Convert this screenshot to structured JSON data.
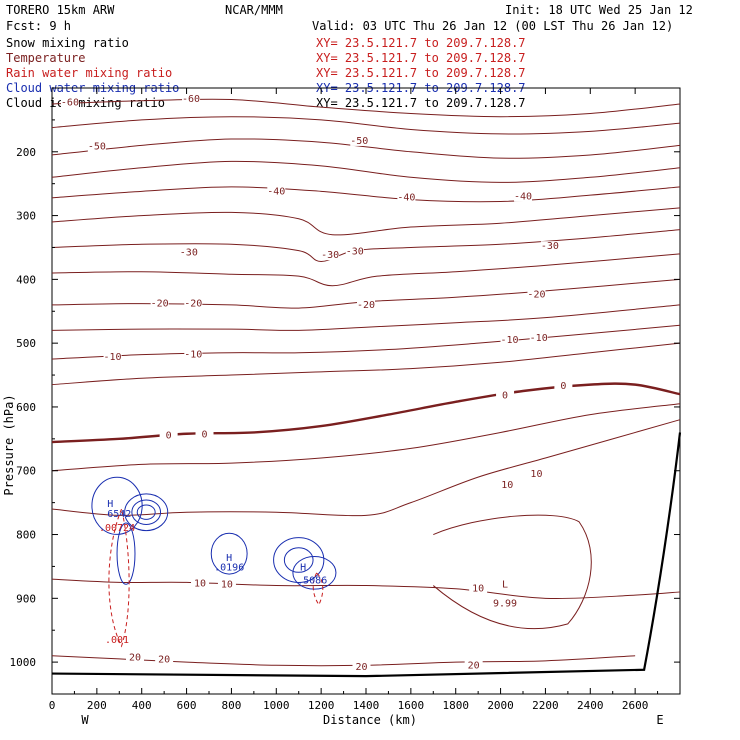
{
  "header": {
    "model": "TORERO  15km ARW",
    "center": "NCAR/MMM",
    "init": "Init: 18 UTC Wed 25 Jan 12",
    "fcst": "Fcst:    9 h",
    "valid": "Valid: 03 UTC Thu 26 Jan 12 (00 LST Thu 26 Jan 12)"
  },
  "fields": [
    {
      "name": "Snow mixing ratio",
      "xy": "XY=  23.5.121.7 to 209.7.128.7",
      "color": "#000000",
      "xycolor": "#c81e1e"
    },
    {
      "name": "Temperature",
      "xy": "XY=  23.5.121.7 to 209.7.128.7",
      "color": "#7a1f1f",
      "xycolor": "#c81e1e"
    },
    {
      "name": "Rain water mixing ratio",
      "xy": "XY=  23.5.121.7 to 209.7.128.7",
      "color": "#c81e1e",
      "xycolor": "#c81e1e"
    },
    {
      "name": "Cloud water mixing ratio",
      "xy": "XY=  23.5.121.7 to 209.7.128.7",
      "color": "#1a2fb0",
      "xycolor": "#1a2fb0"
    },
    {
      "name": "Cloud ice mixing ratio",
      "xy": "XY=  23.5.121.7 to 209.7.128.7",
      "color": "#000000",
      "xycolor": "#000000"
    }
  ],
  "chart_data": {
    "type": "contour cross-section",
    "xlabel": "Distance (km)",
    "ylabel": "Pressure (hPa)",
    "xlim": [
      0,
      2800
    ],
    "ylim": [
      1050,
      100
    ],
    "xticks": [
      "0",
      "200",
      "400",
      "600",
      "800",
      "1000",
      "1200",
      "1400",
      "1600",
      "1800",
      "2000",
      "2200",
      "2400",
      "2600"
    ],
    "yticks": [
      "200",
      "300",
      "400",
      "500",
      "600",
      "700",
      "800",
      "900",
      "1000"
    ],
    "x_endpoints": {
      "left": "W",
      "right": "E"
    },
    "temperature_contours": [
      {
        "level": -60,
        "line": [
          [
            0,
            125
          ],
          [
            400,
            120
          ],
          [
            800,
            118
          ],
          [
            1200,
            130
          ],
          [
            1600,
            140
          ],
          [
            2000,
            145
          ],
          [
            2400,
            140
          ],
          [
            2800,
            125
          ]
        ]
      },
      {
        "level": -55,
        "line": [
          [
            0,
            162
          ],
          [
            400,
            150
          ],
          [
            800,
            145
          ],
          [
            1200,
            150
          ],
          [
            1600,
            165
          ],
          [
            2000,
            172
          ],
          [
            2400,
            168
          ],
          [
            2800,
            155
          ]
        ]
      },
      {
        "level": -50,
        "line": [
          [
            0,
            205
          ],
          [
            400,
            190
          ],
          [
            800,
            180
          ],
          [
            1200,
            185
          ],
          [
            1600,
            200
          ],
          [
            2000,
            210
          ],
          [
            2400,
            205
          ],
          [
            2800,
            190
          ]
        ]
      },
      {
        "level": -45,
        "line": [
          [
            0,
            240
          ],
          [
            400,
            225
          ],
          [
            800,
            215
          ],
          [
            1200,
            222
          ],
          [
            1600,
            240
          ],
          [
            2000,
            248
          ],
          [
            2400,
            240
          ],
          [
            2800,
            225
          ]
        ]
      },
      {
        "level": -40,
        "line": [
          [
            0,
            272
          ],
          [
            400,
            262
          ],
          [
            800,
            255
          ],
          [
            1200,
            262
          ],
          [
            1600,
            275
          ],
          [
            2000,
            278
          ],
          [
            2400,
            268
          ],
          [
            2800,
            255
          ]
        ]
      },
      {
        "level": -35,
        "line": [
          [
            0,
            310
          ],
          [
            400,
            300
          ],
          [
            800,
            295
          ],
          [
            1100,
            305
          ],
          [
            1250,
            330
          ],
          [
            1600,
            318
          ],
          [
            2000,
            312
          ],
          [
            2400,
            300
          ],
          [
            2800,
            288
          ]
        ]
      },
      {
        "level": -30,
        "line": [
          [
            0,
            350
          ],
          [
            400,
            345
          ],
          [
            800,
            345
          ],
          [
            1100,
            355
          ],
          [
            1200,
            372
          ],
          [
            1350,
            355
          ],
          [
            1600,
            350
          ],
          [
            2000,
            345
          ],
          [
            2400,
            335
          ],
          [
            2800,
            322
          ]
        ]
      },
      {
        "level": -25,
        "line": [
          [
            0,
            390
          ],
          [
            400,
            388
          ],
          [
            800,
            392
          ],
          [
            1100,
            395
          ],
          [
            1250,
            410
          ],
          [
            1450,
            395
          ],
          [
            1800,
            388
          ],
          [
            2200,
            378
          ],
          [
            2800,
            360
          ]
        ]
      },
      {
        "level": -20,
        "line": [
          [
            0,
            440
          ],
          [
            400,
            438
          ],
          [
            800,
            440
          ],
          [
            1100,
            445
          ],
          [
            1400,
            435
          ],
          [
            1800,
            428
          ],
          [
            2200,
            418
          ],
          [
            2800,
            400
          ]
        ]
      },
      {
        "level": -15,
        "line": [
          [
            0,
            480
          ],
          [
            400,
            478
          ],
          [
            800,
            478
          ],
          [
            1100,
            480
          ],
          [
            1400,
            475
          ],
          [
            1800,
            468
          ],
          [
            2200,
            460
          ],
          [
            2800,
            440
          ]
        ]
      },
      {
        "level": -10,
        "line": [
          [
            0,
            525
          ],
          [
            400,
            518
          ],
          [
            800,
            515
          ],
          [
            1100,
            515
          ],
          [
            1500,
            510
          ],
          [
            1900,
            500
          ],
          [
            2300,
            488
          ],
          [
            2800,
            472
          ]
        ]
      },
      {
        "level": -5,
        "line": [
          [
            0,
            565
          ],
          [
            400,
            555
          ],
          [
            800,
            550
          ],
          [
            1200,
            545
          ],
          [
            1600,
            540
          ],
          [
            2000,
            530
          ],
          [
            2400,
            515
          ],
          [
            2800,
            500
          ]
        ]
      },
      {
        "level": 0,
        "line": [
          [
            0,
            655
          ],
          [
            300,
            650
          ],
          [
            600,
            642
          ],
          [
            900,
            640
          ],
          [
            1200,
            630
          ],
          [
            1500,
            612
          ],
          [
            1800,
            592
          ],
          [
            2100,
            575
          ],
          [
            2400,
            565
          ],
          [
            2600,
            565
          ],
          [
            2800,
            580
          ]
        ]
      },
      {
        "level": 5,
        "line": [
          [
            0,
            700
          ],
          [
            400,
            690
          ],
          [
            800,
            688
          ],
          [
            1200,
            680
          ],
          [
            1600,
            665
          ],
          [
            2000,
            640
          ],
          [
            2400,
            612
          ],
          [
            2800,
            595
          ]
        ]
      },
      {
        "level": 10,
        "line": [
          [
            0,
            760
          ],
          [
            300,
            770
          ],
          [
            600,
            765
          ],
          [
            1000,
            765
          ],
          [
            1400,
            770
          ],
          [
            1600,
            750
          ],
          [
            1900,
            710
          ],
          [
            2200,
            680
          ],
          [
            2500,
            650
          ],
          [
            2800,
            620
          ]
        ]
      },
      {
        "level": 10,
        "line": [
          [
            0,
            870
          ],
          [
            300,
            875
          ],
          [
            600,
            875
          ],
          [
            1000,
            880
          ],
          [
            1400,
            880
          ],
          [
            1800,
            885
          ],
          [
            2200,
            900
          ],
          [
            2600,
            895
          ],
          [
            2800,
            890
          ]
        ]
      },
      {
        "level": 20,
        "line": [
          [
            0,
            990
          ],
          [
            300,
            995
          ],
          [
            600,
            1000
          ],
          [
            1000,
            1005
          ],
          [
            1400,
            1005
          ],
          [
            1800,
            1000
          ],
          [
            2200,
            998
          ],
          [
            2600,
            990
          ]
        ]
      }
    ],
    "labels": {
      "temperature": [
        {
          "text": "-60",
          "at": [
            80,
            123
          ]
        },
        {
          "text": "-60",
          "at": [
            620,
            117
          ]
        },
        {
          "text": "-50",
          "at": [
            200,
            192
          ]
        },
        {
          "text": "-50",
          "at": [
            1370,
            183
          ]
        },
        {
          "text": "-40",
          "at": [
            1000,
            262
          ]
        },
        {
          "text": "-40",
          "at": [
            1580,
            272
          ]
        },
        {
          "text": "-40",
          "at": [
            2100,
            270
          ]
        },
        {
          "text": "-30",
          "at": [
            610,
            358
          ]
        },
        {
          "text": "-30",
          "at": [
            1240,
            362
          ]
        },
        {
          "text": "-30",
          "at": [
            1350,
            356
          ]
        },
        {
          "text": "-30",
          "at": [
            2220,
            348
          ]
        },
        {
          "text": "-20",
          "at": [
            480,
            438
          ]
        },
        {
          "text": "-20",
          "at": [
            630,
            438
          ]
        },
        {
          "text": "-20",
          "at": [
            1400,
            440
          ]
        },
        {
          "text": "-20",
          "at": [
            2160,
            424
          ]
        },
        {
          "text": "-10",
          "at": [
            270,
            522
          ]
        },
        {
          "text": "-10",
          "at": [
            630,
            518
          ]
        },
        {
          "text": "-10",
          "at": [
            2040,
            495
          ]
        },
        {
          "text": "-10",
          "at": [
            2170,
            492
          ]
        },
        {
          "text": "0",
          "at": [
            520,
            645
          ]
        },
        {
          "text": "0",
          "at": [
            680,
            643
          ]
        },
        {
          "text": "0",
          "at": [
            2020,
            582
          ]
        },
        {
          "text": "0",
          "at": [
            2280,
            567
          ]
        },
        {
          "text": "10",
          "at": [
            2030,
            722
          ]
        },
        {
          "text": "10",
          "at": [
            2160,
            705
          ]
        },
        {
          "text": "10",
          "at": [
            660,
            877
          ]
        },
        {
          "text": "10",
          "at": [
            780,
            878
          ]
        },
        {
          "text": "10",
          "at": [
            1900,
            885
          ]
        },
        {
          "text": "20",
          "at": [
            370,
            993
          ]
        },
        {
          "text": "20",
          "at": [
            500,
            996
          ]
        },
        {
          "text": "20",
          "at": [
            1380,
            1008
          ]
        },
        {
          "text": "20",
          "at": [
            1880,
            1005
          ]
        }
      ],
      "extrema": [
        {
          "text": "L",
          "at": [
            2020,
            878
          ],
          "color": "#7a1f1f"
        },
        {
          "text": "9.99",
          "at": [
            2020,
            908
          ],
          "color": "#7a1f1f"
        },
        {
          "text": "H",
          "at": [
            260,
            752
          ],
          "color": "#1a2fb0"
        },
        {
          "text": "6542",
          "at": [
            300,
            768
          ],
          "color": "#1a2fb0"
        },
        {
          "text": ".00724",
          "at": [
            290,
            790
          ],
          "color": "#c81e1e"
        },
        {
          "text": "H",
          "at": [
            790,
            837
          ],
          "color": "#1a2fb0"
        },
        {
          "text": ".0196",
          "at": [
            790,
            852
          ],
          "color": "#1a2fb0"
        },
        {
          "text": "H",
          "at": [
            1120,
            852
          ],
          "color": "#1a2fb0"
        },
        {
          "text": ".5086",
          "at": [
            1160,
            872
          ],
          "color": "#1a2fb0"
        },
        {
          "text": ".001",
          "at": [
            290,
            965
          ],
          "color": "#c81e1e"
        }
      ]
    }
  }
}
